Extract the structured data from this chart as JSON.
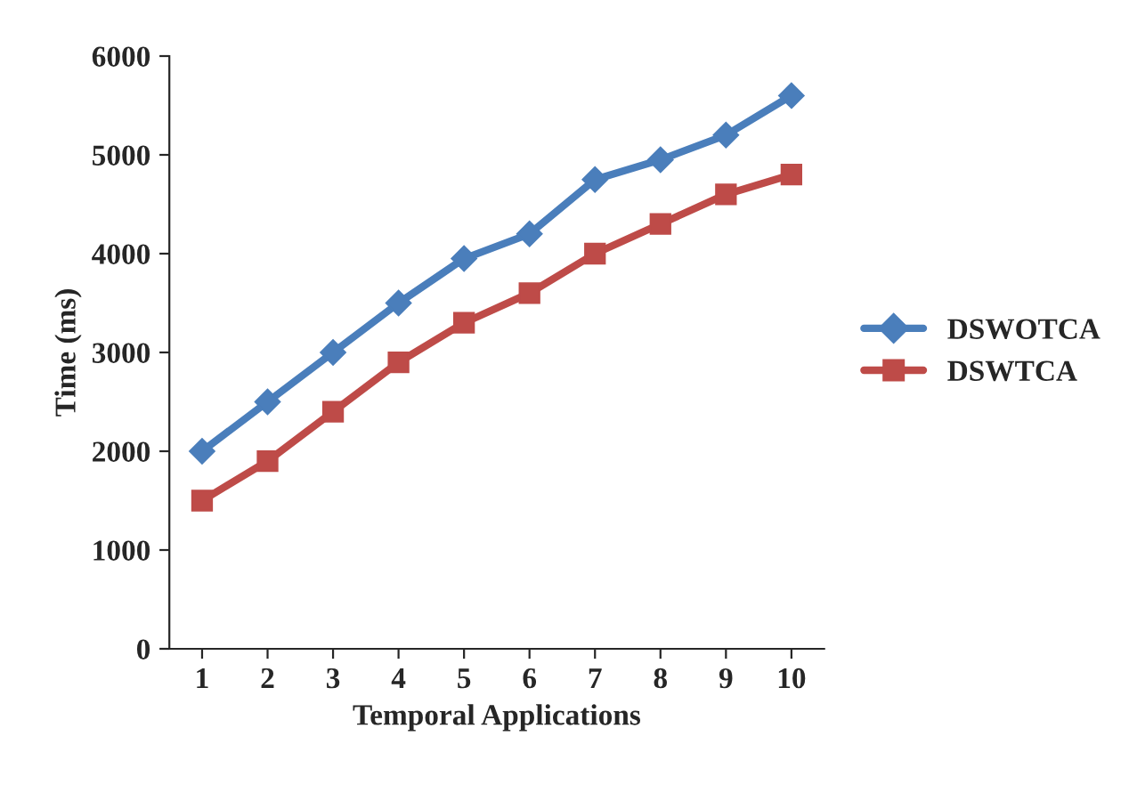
{
  "chart_data": {
    "type": "line",
    "xlabel": "Temporal Applications",
    "ylabel": "Time (ms)",
    "categories": [
      "1",
      "2",
      "3",
      "4",
      "5",
      "6",
      "7",
      "8",
      "9",
      "10"
    ],
    "ylim": [
      0,
      6000
    ],
    "yticks": [
      0,
      1000,
      2000,
      3000,
      4000,
      5000,
      6000
    ],
    "grid": false,
    "legend": "right",
    "line_style": "solid",
    "series": [
      {
        "name": "DSWOTCA",
        "color": "#4a7ebb",
        "marker": "diamond",
        "values": [
          2000,
          2500,
          3000,
          3500,
          3950,
          4200,
          4750,
          4950,
          5200,
          5600
        ]
      },
      {
        "name": "DSWTCA",
        "color": "#be4b48",
        "marker": "square",
        "values": [
          1500,
          1900,
          2400,
          2900,
          3300,
          3600,
          4000,
          4300,
          4600,
          4800
        ]
      }
    ]
  }
}
